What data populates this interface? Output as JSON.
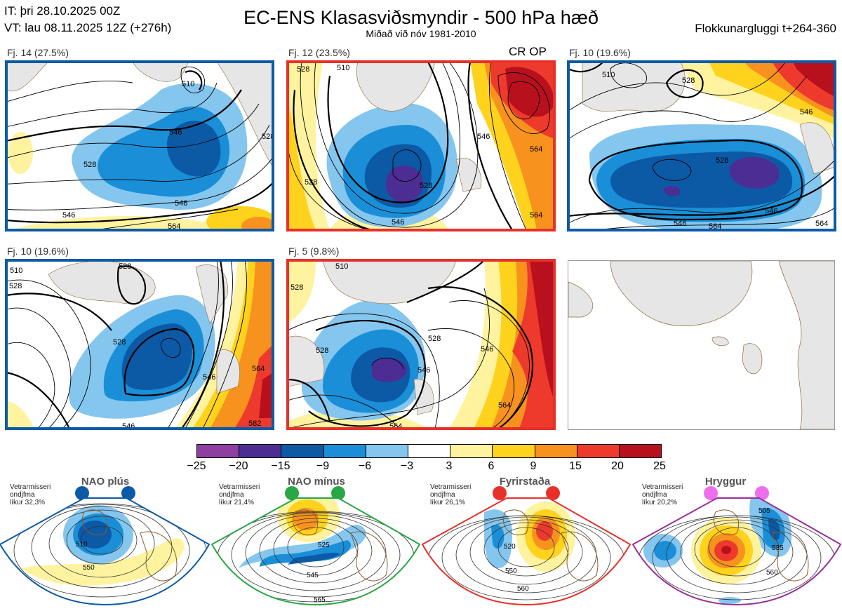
{
  "header": {
    "it": "IT: þri 28.10.2025 00Z",
    "vt": "VT: lau 08.11.2025 12Z  (+276h)",
    "title": "EC-ENS Klasasviðsmyndir - 500 hPa hæð",
    "subtitle": "Miðað við nóv 1981-2010",
    "window": "Flokkunargluggi t+264-360"
  },
  "panels": [
    {
      "label": "Fj. 14 (27.5%)",
      "border": "#0c5aa6",
      "tag": "",
      "contours": [
        "510",
        "528",
        "546",
        "546",
        "528",
        "546",
        "564"
      ]
    },
    {
      "label": "Fj. 12 (23.5%)",
      "border": "#e8302a",
      "tag": "CR OP",
      "contours": [
        "510",
        "528",
        "546",
        "528",
        "528",
        "546",
        "564",
        "564"
      ]
    },
    {
      "label": "Fj. 10 (19.6%)",
      "border": "#0c5aa6",
      "tag": "",
      "contours": [
        "510",
        "528",
        "528",
        "546",
        "546",
        "564",
        "546",
        "564"
      ]
    },
    {
      "label": "Fj. 10 (19.6%)",
      "border": "#0c5aa6",
      "tag": "",
      "contours": [
        "510",
        "528",
        "528",
        "528",
        "546",
        "564",
        "582",
        "546"
      ]
    },
    {
      "label": "Fj. 5 (9.8%)",
      "border": "#e8302a",
      "tag": "",
      "contours": [
        "510",
        "528",
        "528",
        "528",
        "546",
        "546",
        "564",
        "564"
      ]
    }
  ],
  "colorbar": {
    "ticks": [
      "−25",
      "−20",
      "−15",
      "−9",
      "−6",
      "−3",
      "3",
      "6",
      "9",
      "15",
      "20",
      "25"
    ],
    "colors": [
      "#8e3fa0",
      "#4b2d94",
      "#0c5aa6",
      "#1a8fd8",
      "#85c6ee",
      "#ffffff",
      "#fff3a0",
      "#ffd21e",
      "#f7921e",
      "#ed3a2d",
      "#b9101d"
    ]
  },
  "regimes": [
    {
      "title": "NAO plús",
      "note": [
        "Vetrarmisseri",
        "ondjfma",
        "líkur 32,3%"
      ],
      "color": "#0c5aa6",
      "labels": [
        "510",
        "550"
      ]
    },
    {
      "title": "NAO mínus",
      "note": [
        "Vetrarmisseri",
        "ondjfma",
        "líkur 21,4%"
      ],
      "color": "#28a745",
      "labels": [
        "525",
        "545",
        "565"
      ]
    },
    {
      "title": "Fyrirstaða",
      "note": [
        "Vetrarmisseri",
        "ondjfma",
        "líkur 26,1%"
      ],
      "color": "#e8302a",
      "labels": [
        "520",
        "550",
        "560"
      ]
    },
    {
      "title": "Hryggur",
      "note": [
        "Vetrarmisseri",
        "ondjfma",
        "líkur 20,2%"
      ],
      "color": "#9a2f9a",
      "dotcolor": "#ee6fee",
      "labels": [
        "505",
        "535",
        "560"
      ]
    }
  ]
}
